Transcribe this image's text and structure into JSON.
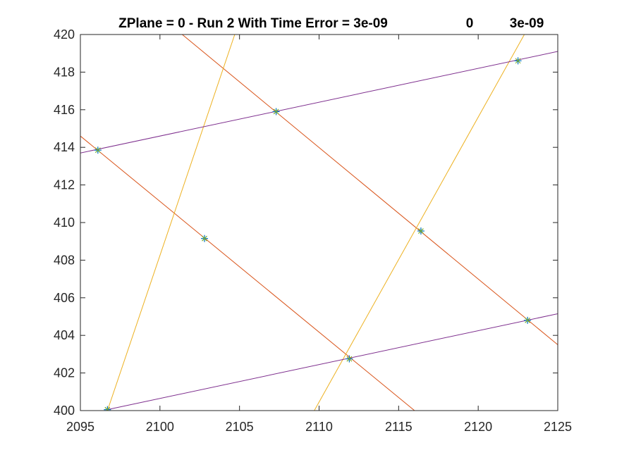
{
  "chart_data": {
    "type": "line",
    "title": "ZPlane = 0 - Run 2 With Time Error = 3e-09",
    "title_extra": [
      "0",
      "3e-09"
    ],
    "xlabel": "",
    "ylabel": "",
    "xlim": [
      2095,
      2125
    ],
    "ylim": [
      400,
      420
    ],
    "xticks": [
      2095,
      2100,
      2105,
      2110,
      2115,
      2120,
      2125
    ],
    "yticks": [
      400,
      402,
      404,
      406,
      408,
      410,
      412,
      414,
      416,
      418,
      420
    ],
    "grid": false,
    "legend": "none",
    "colors": {
      "orange": "#D95319",
      "yellow": "#EDB120",
      "purple": "#7E2F8E",
      "marker": "#0072BD",
      "marker_alt": "#77AC30",
      "axis": "#262626"
    },
    "series": [
      {
        "color": "orange",
        "x": [
          2095,
          2116.0
        ],
        "y": [
          414.6,
          400
        ]
      },
      {
        "color": "orange",
        "x": [
          2101.4,
          2125
        ],
        "y": [
          420,
          403.5
        ]
      },
      {
        "color": "yellow",
        "x": [
          2096.7,
          2104.7
        ],
        "y": [
          400,
          420
        ]
      },
      {
        "color": "yellow",
        "x": [
          2109.7,
          2122.9
        ],
        "y": [
          400,
          420
        ]
      },
      {
        "color": "purple",
        "x": [
          2095,
          2125
        ],
        "y": [
          413.7,
          419.1
        ]
      },
      {
        "color": "purple",
        "x": [
          2096.7,
          2125
        ],
        "y": [
          400.05,
          405.15
        ]
      }
    ],
    "points": [
      {
        "x": 2096.1,
        "y": 413.85
      },
      {
        "x": 2107.3,
        "y": 415.9
      },
      {
        "x": 2122.5,
        "y": 418.6
      },
      {
        "x": 2102.8,
        "y": 409.15
      },
      {
        "x": 2116.4,
        "y": 409.55
      },
      {
        "x": 2111.9,
        "y": 402.75
      },
      {
        "x": 2123.1,
        "y": 404.8
      },
      {
        "x": 2096.7,
        "y": 400.05
      }
    ]
  }
}
